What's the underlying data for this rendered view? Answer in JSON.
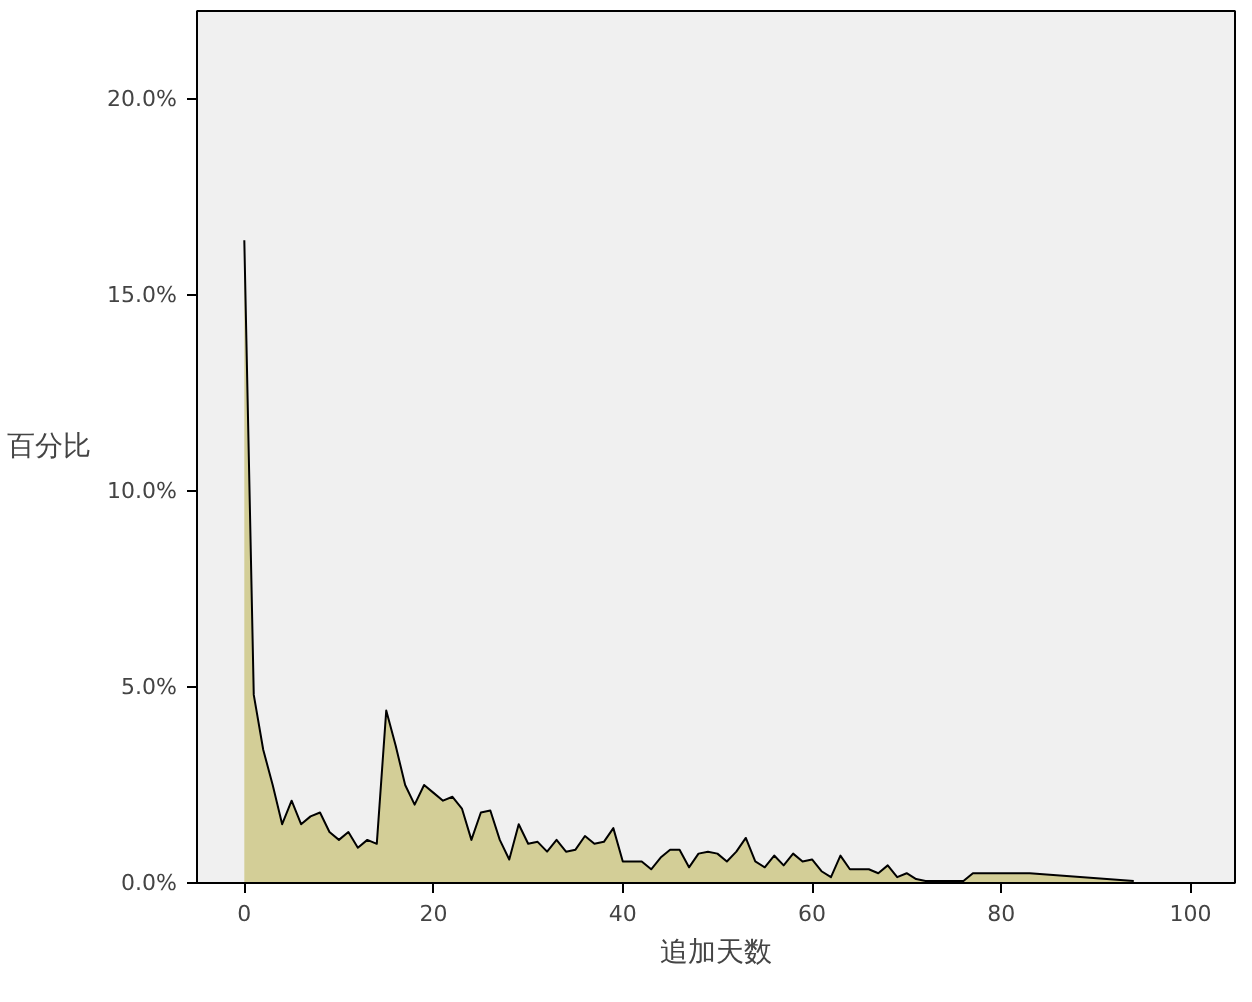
{
  "chart_data": {
    "type": "area",
    "xlabel": "追加天数",
    "ylabel": "百分比",
    "x": [
      0,
      1,
      2,
      3,
      4,
      5,
      6,
      7,
      8,
      9,
      10,
      11,
      12,
      13,
      14,
      15,
      16,
      17,
      18,
      19,
      20,
      21,
      22,
      23,
      24,
      25,
      26,
      27,
      28,
      29,
      30,
      31,
      32,
      33,
      34,
      35,
      36,
      37,
      38,
      39,
      40,
      41,
      42,
      43,
      44,
      45,
      46,
      47,
      48,
      49,
      50,
      51,
      52,
      53,
      54,
      55,
      56,
      57,
      58,
      59,
      60,
      61,
      62,
      63,
      64,
      65,
      66,
      67,
      68,
      69,
      70,
      71,
      72,
      76,
      77,
      83,
      94
    ],
    "series": [
      {
        "color": "#d3ce97",
        "values": [
          16.4,
          4.8,
          3.4,
          2.5,
          1.5,
          2.1,
          1.5,
          1.7,
          1.8,
          1.3,
          1.1,
          1.3,
          0.9,
          1.1,
          1.0,
          4.4,
          3.5,
          2.5,
          2.0,
          2.5,
          2.3,
          2.1,
          2.2,
          1.9,
          1.1,
          1.8,
          1.85,
          1.1,
          0.6,
          1.5,
          1.0,
          1.05,
          0.8,
          1.1,
          0.8,
          0.85,
          1.2,
          1.0,
          1.05,
          1.4,
          0.55,
          0.55,
          0.55,
          0.35,
          0.65,
          0.85,
          0.85,
          0.4,
          0.75,
          0.8,
          0.75,
          0.55,
          0.8,
          1.15,
          0.55,
          0.4,
          0.7,
          0.45,
          0.75,
          0.55,
          0.6,
          0.3,
          0.15,
          0.7,
          0.35,
          0.35,
          0.35,
          0.25,
          0.45,
          0.15,
          0.25,
          0.1,
          0.05,
          0.05,
          0.25,
          0.25,
          0.05
        ]
      }
    ],
    "xlim": [
      -5,
      104.7
    ],
    "ylim": [
      0,
      22.25
    ],
    "xticks": [
      0,
      20,
      40,
      60,
      80,
      100
    ],
    "yticks": [
      {
        "value": 0,
        "label": "0.0%"
      },
      {
        "value": 5,
        "label": "5.0%"
      },
      {
        "value": 10,
        "label": "10.0%"
      },
      {
        "value": 15,
        "label": "15.0%"
      },
      {
        "value": 20,
        "label": "20.0%"
      }
    ],
    "grid": false
  }
}
